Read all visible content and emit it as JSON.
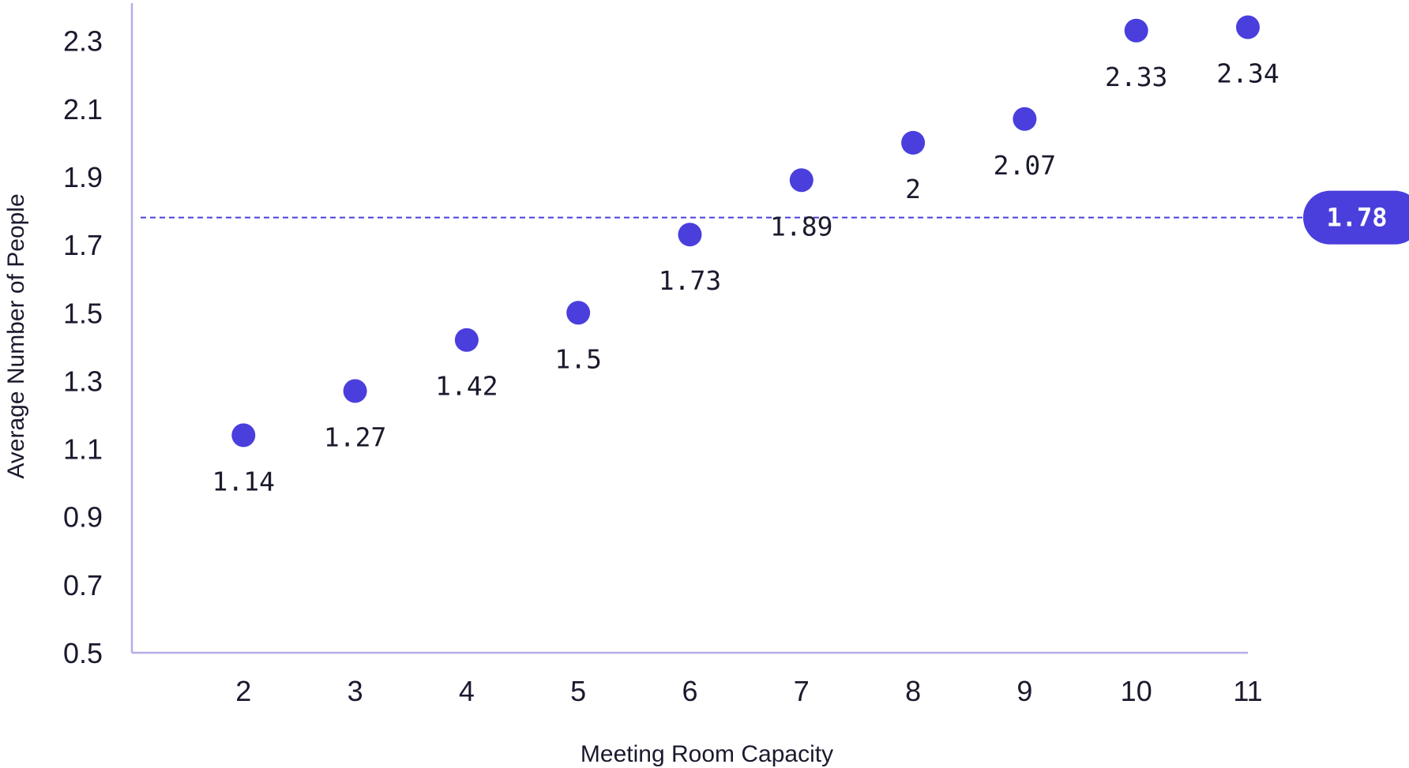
{
  "chart_data": {
    "type": "scatter",
    "title": "",
    "xlabel": "Meeting Room Capacity",
    "ylabel": "Average Number of People",
    "x": [
      2,
      3,
      4,
      5,
      6,
      7,
      8,
      9,
      10,
      11
    ],
    "values": [
      1.14,
      1.27,
      1.42,
      1.5,
      1.73,
      1.89,
      2,
      2.07,
      2.33,
      2.34
    ],
    "data_labels": [
      "1.14",
      "1.27",
      "1.42",
      "1.5",
      "1.73",
      "1.89",
      "2",
      "2.07",
      "2.33",
      "2.34"
    ],
    "x_ticks": [
      "2",
      "3",
      "4",
      "5",
      "6",
      "7",
      "8",
      "9",
      "10",
      "11"
    ],
    "y_ticks": [
      "0.5",
      "0.7",
      "0.9",
      "1.1",
      "1.3",
      "1.5",
      "1.7",
      "1.9",
      "2.1",
      "2.3"
    ],
    "ylim": [
      0.5,
      2.42
    ],
    "xlim": [
      1,
      11
    ],
    "grid": false,
    "reference_line": {
      "value": 1.78,
      "label": "1.78",
      "style": "dashed"
    },
    "colors": {
      "point": "#4a3fdc",
      "axis": "#b3aee8",
      "reference_line": "#4a3fdc",
      "badge": "#4a3fdc"
    }
  }
}
